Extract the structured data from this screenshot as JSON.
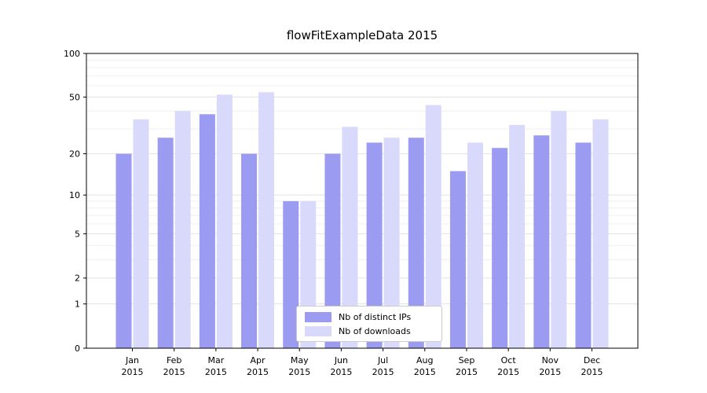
{
  "title": "flowFitExampleData 2015",
  "colors": {
    "series_ips": "#9b9bf1",
    "series_downloads": "#d9d9fb",
    "grid_major": "#e2e2e2",
    "grid_minor": "#efefef",
    "axis": "#000000",
    "background": "#ffffff",
    "legend_border": "#cccccc"
  },
  "chart_data": {
    "type": "bar",
    "title": "flowFitExampleData 2015",
    "categories": [
      "Jan",
      "Feb",
      "Mar",
      "Apr",
      "May",
      "Jun",
      "Jul",
      "Aug",
      "Sep",
      "Oct",
      "Nov",
      "Dec"
    ],
    "year": "2015",
    "series": [
      {
        "name": "Nb of distinct IPs",
        "color": "#9b9bf1",
        "values": [
          20,
          26,
          38,
          20,
          9,
          20,
          24,
          26,
          15,
          22,
          27,
          24
        ]
      },
      {
        "name": "Nb of downloads",
        "color": "#d9d9fb",
        "values": [
          35,
          40,
          52,
          54,
          9,
          31,
          26,
          44,
          24,
          32,
          40,
          35
        ]
      }
    ],
    "yscale": "log1p",
    "ylim": [
      0,
      100
    ],
    "yticks": [
      0,
      1,
      2,
      5,
      10,
      20,
      50,
      100
    ],
    "grid": "horizontal",
    "legend_position": "lower center"
  }
}
